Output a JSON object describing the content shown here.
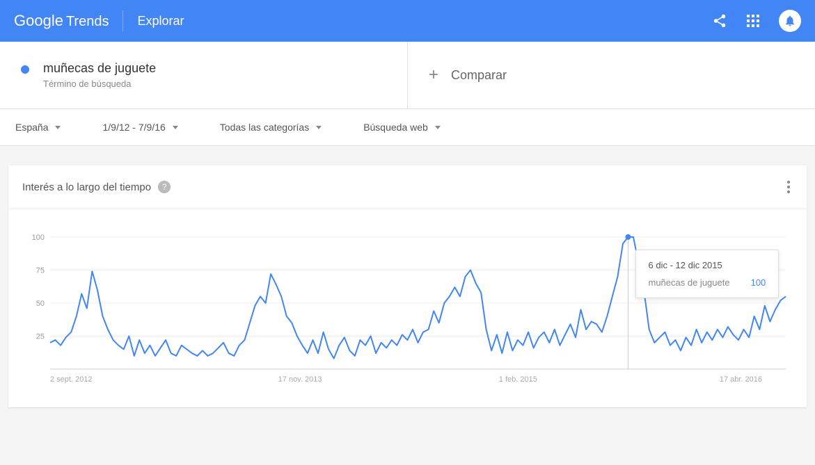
{
  "header": {
    "logo_google": "Google",
    "logo_trends": "Trends",
    "explore": "Explorar"
  },
  "term": {
    "name": "muñecas de juguete",
    "subtitle": "Término de búsqueda",
    "dot_color": "#4285f4"
  },
  "compare": {
    "label": "Comparar"
  },
  "filters": {
    "region": "España",
    "daterange": "1/9/12 - 7/9/16",
    "category": "Todas las categorías",
    "searchtype": "Búsqueda web"
  },
  "chart": {
    "title": "Interés a lo largo del tiempo",
    "type": "line",
    "ylim": [
      0,
      100
    ],
    "yticks": [
      25,
      50,
      75,
      100
    ],
    "xlabels": [
      {
        "x": 0.0,
        "text": "2 sept. 2012"
      },
      {
        "x": 0.31,
        "text": "17 nov. 2013"
      },
      {
        "x": 0.61,
        "text": "1 feb. 2015"
      },
      {
        "x": 0.91,
        "text": "17 abr. 2016"
      }
    ],
    "line_color": "#4285f4",
    "grid_color": "#eeeeee",
    "baseline_color": "#cccccc",
    "background_color": "#ffffff",
    "values": [
      20,
      22,
      18,
      24,
      28,
      40,
      57,
      46,
      74,
      60,
      40,
      30,
      22,
      18,
      15,
      25,
      10,
      22,
      12,
      18,
      10,
      16,
      22,
      12,
      10,
      18,
      15,
      12,
      10,
      14,
      10,
      12,
      16,
      20,
      12,
      10,
      18,
      22,
      35,
      48,
      55,
      50,
      72,
      64,
      55,
      40,
      35,
      25,
      18,
      12,
      22,
      12,
      28,
      15,
      8,
      18,
      24,
      14,
      10,
      22,
      18,
      25,
      12,
      20,
      16,
      22,
      18,
      26,
      22,
      30,
      20,
      28,
      30,
      44,
      35,
      50,
      55,
      62,
      55,
      70,
      75,
      65,
      58,
      30,
      14,
      26,
      12,
      28,
      14,
      22,
      18,
      28,
      16,
      24,
      28,
      20,
      30,
      18,
      26,
      34,
      24,
      45,
      30,
      36,
      34,
      28,
      40,
      55,
      70,
      95,
      100,
      100,
      80,
      60,
      30,
      20,
      24,
      28,
      18,
      22,
      14,
      24,
      18,
      30,
      20,
      28,
      22,
      30,
      24,
      32,
      26,
      22,
      30,
      24,
      40,
      30,
      48,
      36,
      45,
      52,
      55
    ],
    "hover_index": 110,
    "tooltip": {
      "date": "6 dic - 12 dic 2015",
      "series": "muñecas de juguete",
      "value": "100"
    }
  }
}
